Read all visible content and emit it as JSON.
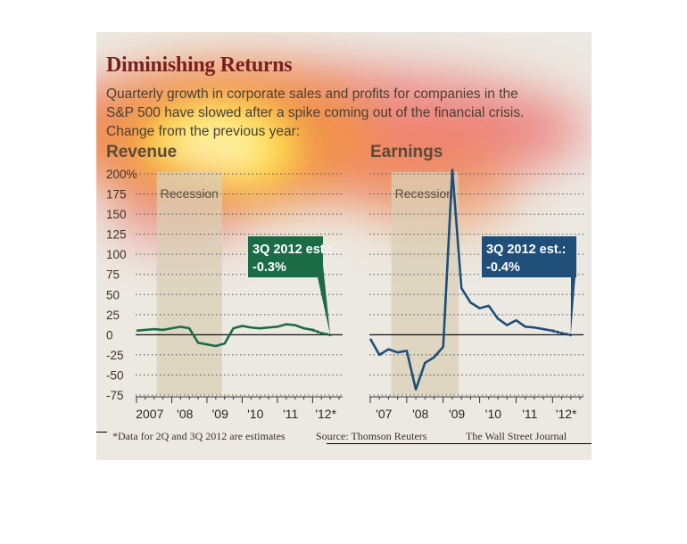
{
  "header": {
    "title": "Diminishing Returns",
    "subtitle_line1": "Quarterly growth in corporate sales and profits for companies in the",
    "subtitle_line2": "S&P 500 have slowed after a spike coming out of the financial crisis.",
    "subtitle_line3": "Change from the previous year:"
  },
  "footer": {
    "note": "*Data for 2Q and 3Q 2012 are estimates",
    "source": "Source: Thomson Reuters",
    "credit": "The Wall Street Journal"
  },
  "colors": {
    "revenue": "#1c6b47",
    "earnings": "#1f4e79",
    "recession": "#d9cfb6",
    "title": "#7a1f1f"
  },
  "chart_data": [
    {
      "type": "line",
      "title": "Revenue",
      "ylim": [
        -75,
        200
      ],
      "y_ticks": [
        "200%",
        "175",
        "150",
        "125",
        "100",
        "75",
        "50",
        "25",
        "0",
        "-25",
        "-50",
        "-75"
      ],
      "x_labels": [
        "2007",
        "'08",
        "'09",
        "'10",
        "'11",
        "'12*"
      ],
      "grid": true,
      "shaded_region_label": "Recession",
      "shaded_region": [
        "2007 Q4",
        "2009 Q2"
      ],
      "annotation_label": "3Q 2012 est.:",
      "annotation_value": "-0.3%",
      "series": [
        {
          "x": [
            "2007 Q1",
            "2007 Q2",
            "2007 Q3",
            "2007 Q4",
            "2008 Q1",
            "2008 Q2",
            "2008 Q3",
            "2008 Q4",
            "2009 Q1",
            "2009 Q2",
            "2009 Q3",
            "2009 Q4",
            "2010 Q1",
            "2010 Q2",
            "2010 Q3",
            "2010 Q4",
            "2011 Q1",
            "2011 Q2",
            "2011 Q3",
            "2011 Q4",
            "2012 Q1"
          ],
          "values": [
            5,
            6,
            7,
            6,
            8,
            10,
            8,
            -10,
            -12,
            -14,
            -11,
            8,
            11,
            9,
            8,
            9,
            10,
            13,
            12,
            8,
            6
          ]
        },
        {
          "estimate": true,
          "x": [
            "2012 Q1",
            "2012 Q2",
            "2012 Q3"
          ],
          "values": [
            6,
            2,
            -0.3
          ]
        }
      ]
    },
    {
      "type": "line",
      "title": "Earnings",
      "ylim": [
        -75,
        200
      ],
      "x_labels": [
        "'07",
        "'08",
        "'09",
        "'10",
        "'11",
        "'12*"
      ],
      "grid": true,
      "shaded_region_label": "Recession",
      "shaded_region": [
        "2007 Q4",
        "2009 Q2"
      ],
      "annotation_label": "3Q 2012 est.:",
      "annotation_value": "-0.4%",
      "series": [
        {
          "x": [
            "2007 Q1",
            "2007 Q2",
            "2007 Q3",
            "2007 Q4",
            "2008 Q1",
            "2008 Q2",
            "2008 Q3",
            "2008 Q4",
            "2009 Q1",
            "2009 Q2",
            "2009 Q3",
            "2009 Q4",
            "2010 Q1",
            "2010 Q2",
            "2010 Q3",
            "2010 Q4",
            "2011 Q1",
            "2011 Q2",
            "2011 Q3",
            "2011 Q4",
            "2012 Q1"
          ],
          "values": [
            -5,
            -25,
            -18,
            -22,
            -20,
            -68,
            -35,
            -28,
            -15,
            205,
            58,
            40,
            33,
            36,
            20,
            12,
            18,
            10,
            9,
            7,
            5
          ]
        },
        {
          "estimate": true,
          "x": [
            "2012 Q1",
            "2012 Q2",
            "2012 Q3"
          ],
          "values": [
            5,
            2,
            -0.4
          ]
        }
      ]
    }
  ]
}
